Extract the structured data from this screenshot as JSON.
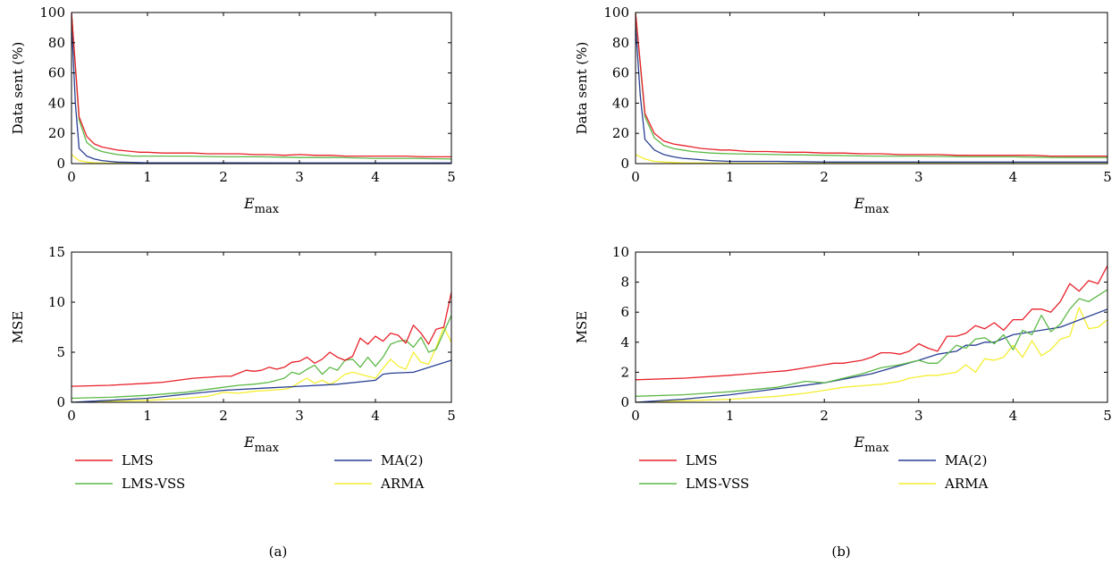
{
  "colors": {
    "LMS": "#e8212a",
    "LMS-VSS": "#5cb947",
    "MA(2)": "#283f94",
    "ARMA": "#f4ee31"
  },
  "captions": [
    "(a)",
    "(b)"
  ],
  "legend": {
    "items": [
      {
        "name": "LMS"
      },
      {
        "name": "MA(2)"
      },
      {
        "name": "LMS-VSS"
      },
      {
        "name": "ARMA"
      }
    ]
  },
  "chart_data": [
    {
      "type": "line",
      "panel": "(a)",
      "ylabel": "Data sent (%)",
      "xlabel": "E_max",
      "xlim": [
        0,
        5
      ],
      "ylim": [
        0,
        100
      ],
      "xticks": [
        0,
        1,
        2,
        3,
        4,
        5
      ],
      "yticks": [
        0,
        20,
        40,
        60,
        80,
        100
      ],
      "series": [
        {
          "name": "LMS",
          "x": [
            0,
            0.1,
            0.2,
            0.3,
            0.4,
            0.5,
            0.6,
            0.7,
            0.8,
            0.9,
            1,
            1.2,
            1.4,
            1.6,
            1.8,
            2,
            2.2,
            2.4,
            2.6,
            2.8,
            3,
            3.2,
            3.4,
            3.6,
            3.8,
            4,
            4.2,
            4.4,
            4.6,
            4.8,
            5
          ],
          "y": [
            100,
            31,
            18,
            13,
            11,
            10,
            9,
            8.5,
            8,
            7.5,
            7.5,
            7,
            7,
            7,
            6.5,
            6.5,
            6.5,
            6,
            6,
            5.5,
            6,
            5.5,
            5.5,
            5,
            5,
            5,
            5,
            5,
            4.5,
            4.5,
            4.5
          ]
        },
        {
          "name": "LMS-VSS",
          "x": [
            0,
            0.1,
            0.2,
            0.3,
            0.4,
            0.5,
            0.6,
            0.7,
            0.8,
            1,
            1.5,
            2,
            2.5,
            3,
            3.5,
            4,
            4.5,
            5
          ],
          "y": [
            100,
            29,
            14,
            10,
            8,
            7,
            6,
            5.5,
            5,
            5,
            5,
            4.5,
            4.5,
            4,
            4,
            3.5,
            3.5,
            3
          ]
        },
        {
          "name": "MA(2)",
          "x": [
            0,
            0.05,
            0.1,
            0.2,
            0.3,
            0.4,
            0.5,
            0.6,
            0.8,
            1,
            1.5,
            2,
            3,
            4,
            5
          ],
          "y": [
            95,
            40,
            10,
            5,
            3,
            2,
            1.5,
            1,
            0.8,
            0.5,
            0.5,
            0.5,
            0.4,
            0.4,
            0.4
          ]
        },
        {
          "name": "ARMA",
          "x": [
            0,
            0.1,
            0.2,
            0.3,
            0.5,
            1,
            2,
            3,
            4,
            5
          ],
          "y": [
            6,
            2,
            1,
            0.5,
            0.3,
            0.2,
            0.2,
            0.1,
            0.1,
            0.1
          ]
        }
      ]
    },
    {
      "type": "line",
      "panel": "(b)",
      "ylabel": "Data sent (%)",
      "xlabel": "E_max",
      "xlim": [
        0,
        5
      ],
      "ylim": [
        0,
        100
      ],
      "xticks": [
        0,
        1,
        2,
        3,
        4,
        5
      ],
      "yticks": [
        0,
        20,
        40,
        60,
        80,
        100
      ],
      "series": [
        {
          "name": "LMS",
          "x": [
            0,
            0.1,
            0.2,
            0.3,
            0.4,
            0.5,
            0.6,
            0.7,
            0.8,
            0.9,
            1,
            1.2,
            1.4,
            1.6,
            1.8,
            2,
            2.2,
            2.4,
            2.6,
            2.8,
            3,
            3.2,
            3.4,
            3.6,
            3.8,
            4,
            4.2,
            4.4,
            4.6,
            4.8,
            5
          ],
          "y": [
            100,
            33,
            20,
            15,
            13,
            12,
            11,
            10,
            9.5,
            9,
            9,
            8,
            8,
            7.5,
            7.5,
            7,
            7,
            6.5,
            6.5,
            6,
            6,
            6,
            5.5,
            5.5,
            5.5,
            5.5,
            5.5,
            5,
            5,
            5,
            5
          ]
        },
        {
          "name": "LMS-VSS",
          "x": [
            0,
            0.1,
            0.2,
            0.3,
            0.4,
            0.5,
            0.6,
            0.8,
            1,
            1.5,
            2,
            2.5,
            3,
            3.5,
            4,
            4.5,
            5
          ],
          "y": [
            100,
            31,
            17,
            12,
            10,
            9,
            8,
            7,
            6.5,
            6,
            5.5,
            5,
            5,
            4.5,
            4.5,
            4,
            4
          ]
        },
        {
          "name": "MA(2)",
          "x": [
            0,
            0.05,
            0.1,
            0.2,
            0.3,
            0.4,
            0.5,
            0.6,
            0.8,
            1,
            1.5,
            2,
            3,
            4,
            5
          ],
          "y": [
            92,
            45,
            16,
            9,
            6,
            4.5,
            3.5,
            3,
            2,
            1.5,
            1.5,
            1,
            1,
            1,
            1
          ]
        },
        {
          "name": "ARMA",
          "x": [
            0,
            0.1,
            0.2,
            0.3,
            0.5,
            1,
            2,
            3,
            4,
            5
          ],
          "y": [
            6,
            3,
            1.5,
            1,
            0.5,
            0.3,
            0.2,
            0.2,
            0.1,
            0.1
          ]
        }
      ]
    },
    {
      "type": "line",
      "panel": "(a)",
      "ylabel": "MSE",
      "xlabel": "E_max",
      "xlim": [
        0,
        5
      ],
      "ylim": [
        0,
        15
      ],
      "xticks": [
        0,
        1,
        2,
        3,
        4,
        5
      ],
      "yticks": [
        0,
        5,
        10,
        15
      ],
      "series": [
        {
          "name": "LMS",
          "x": [
            0,
            0.5,
            1,
            1.2,
            1.4,
            1.6,
            1.8,
            2,
            2.1,
            2.2,
            2.3,
            2.4,
            2.5,
            2.6,
            2.7,
            2.8,
            2.9,
            3,
            3.1,
            3.2,
            3.3,
            3.4,
            3.5,
            3.6,
            3.7,
            3.8,
            3.9,
            4,
            4.1,
            4.2,
            4.3,
            4.4,
            4.5,
            4.6,
            4.7,
            4.8,
            4.9,
            5
          ],
          "y": [
            1.6,
            1.7,
            1.9,
            2.0,
            2.2,
            2.4,
            2.5,
            2.6,
            2.6,
            2.9,
            3.2,
            3.1,
            3.2,
            3.5,
            3.3,
            3.5,
            4.0,
            4.1,
            4.5,
            3.9,
            4.3,
            5.0,
            4.5,
            4.2,
            4.6,
            6.4,
            5.8,
            6.6,
            6.1,
            6.9,
            6.7,
            5.9,
            7.7,
            6.9,
            5.8,
            7.3,
            7.5,
            11.0
          ]
        },
        {
          "name": "LMS-VSS",
          "x": [
            0,
            0.5,
            1,
            1.5,
            2,
            2.2,
            2.4,
            2.6,
            2.8,
            2.9,
            3,
            3.1,
            3.2,
            3.3,
            3.4,
            3.5,
            3.6,
            3.7,
            3.8,
            3.9,
            4,
            4.1,
            4.2,
            4.3,
            4.4,
            4.5,
            4.6,
            4.7,
            4.8,
            4.9,
            5
          ],
          "y": [
            0.4,
            0.5,
            0.7,
            1.0,
            1.5,
            1.7,
            1.8,
            2.0,
            2.4,
            3.0,
            2.8,
            3.3,
            3.7,
            2.8,
            3.5,
            3.2,
            4.2,
            4.3,
            3.5,
            4.5,
            3.6,
            4.5,
            5.8,
            6.1,
            6.2,
            5.5,
            6.5,
            5.0,
            5.3,
            7.0,
            8.7
          ]
        },
        {
          "name": "MA(2)",
          "x": [
            0,
            0.5,
            1,
            1.5,
            2,
            2.5,
            3,
            3.5,
            4,
            4.1,
            4.2,
            4.5,
            5
          ],
          "y": [
            0,
            0.2,
            0.4,
            0.8,
            1.2,
            1.4,
            1.6,
            1.8,
            2.2,
            2.8,
            2.9,
            3.0,
            4.2
          ]
        },
        {
          "name": "ARMA",
          "x": [
            0,
            0.5,
            1,
            1.5,
            1.8,
            2,
            2.2,
            2.4,
            2.6,
            2.8,
            2.9,
            3,
            3.1,
            3.2,
            3.3,
            3.4,
            3.5,
            3.6,
            3.7,
            3.8,
            3.9,
            4,
            4.1,
            4.2,
            4.3,
            4.4,
            4.5,
            4.6,
            4.7,
            4.8,
            4.9,
            5
          ],
          "y": [
            0,
            0.1,
            0.2,
            0.4,
            0.6,
            1.0,
            0.9,
            1.1,
            1.2,
            1.3,
            1.5,
            2.0,
            2.4,
            1.9,
            2.2,
            1.8,
            2.2,
            2.8,
            3.0,
            2.8,
            2.6,
            2.4,
            3.4,
            4.3,
            3.6,
            3.3,
            5.0,
            4.0,
            3.8,
            5.5,
            7.5,
            6.0
          ]
        }
      ]
    },
    {
      "type": "line",
      "panel": "(b)",
      "ylabel": "MSE",
      "xlabel": "E_max",
      "xlim": [
        0,
        5
      ],
      "ylim": [
        0,
        10
      ],
      "xticks": [
        0,
        1,
        2,
        3,
        4,
        5
      ],
      "yticks": [
        0,
        2,
        4,
        6,
        8,
        10
      ],
      "series": [
        {
          "name": "LMS",
          "x": [
            0,
            0.5,
            1,
            1.2,
            1.4,
            1.6,
            1.8,
            2,
            2.1,
            2.2,
            2.3,
            2.4,
            2.5,
            2.6,
            2.7,
            2.8,
            2.9,
            3,
            3.1,
            3.2,
            3.3,
            3.4,
            3.5,
            3.6,
            3.7,
            3.8,
            3.9,
            4,
            4.1,
            4.2,
            4.3,
            4.4,
            4.5,
            4.6,
            4.7,
            4.8,
            4.9,
            5
          ],
          "y": [
            1.5,
            1.6,
            1.8,
            1.9,
            2.0,
            2.1,
            2.3,
            2.5,
            2.6,
            2.6,
            2.7,
            2.8,
            3.0,
            3.3,
            3.3,
            3.2,
            3.4,
            3.9,
            3.6,
            3.4,
            4.4,
            4.4,
            4.6,
            5.1,
            4.9,
            5.3,
            4.8,
            5.5,
            5.5,
            6.2,
            6.2,
            6.0,
            6.7,
            7.9,
            7.4,
            8.1,
            7.9,
            9.1
          ]
        },
        {
          "name": "LMS-VSS",
          "x": [
            0,
            0.5,
            1,
            1.5,
            1.8,
            2,
            2.2,
            2.4,
            2.6,
            2.8,
            3,
            3.1,
            3.2,
            3.3,
            3.4,
            3.5,
            3.6,
            3.7,
            3.8,
            3.9,
            4,
            4.1,
            4.2,
            4.3,
            4.4,
            4.5,
            4.6,
            4.7,
            4.8,
            4.9,
            5
          ],
          "y": [
            0.4,
            0.5,
            0.7,
            1.0,
            1.4,
            1.3,
            1.6,
            1.9,
            2.3,
            2.5,
            2.8,
            2.6,
            2.6,
            3.2,
            3.8,
            3.6,
            4.2,
            4.3,
            3.9,
            4.5,
            3.5,
            4.8,
            4.5,
            5.8,
            4.7,
            5.2,
            6.2,
            6.9,
            6.7,
            7.1,
            7.5
          ]
        },
        {
          "name": "MA(2)",
          "x": [
            0,
            0.5,
            1,
            1.5,
            2,
            2.5,
            3,
            3.2,
            3.4,
            3.5,
            3.6,
            3.7,
            3.8,
            4,
            4.5,
            5
          ],
          "y": [
            0,
            0.2,
            0.5,
            0.9,
            1.3,
            1.9,
            2.8,
            3.2,
            3.4,
            3.8,
            3.8,
            4.0,
            4.0,
            4.5,
            5.0,
            6.2
          ]
        },
        {
          "name": "ARMA",
          "x": [
            0,
            0.5,
            1,
            1.5,
            1.8,
            2,
            2.2,
            2.4,
            2.6,
            2.7,
            2.8,
            2.9,
            3,
            3.1,
            3.2,
            3.3,
            3.4,
            3.5,
            3.6,
            3.7,
            3.8,
            3.9,
            4,
            4.1,
            4.2,
            4.3,
            4.4,
            4.5,
            4.6,
            4.7,
            4.8,
            4.9,
            5
          ],
          "y": [
            0,
            0.1,
            0.2,
            0.4,
            0.6,
            0.8,
            1.0,
            1.1,
            1.2,
            1.3,
            1.4,
            1.6,
            1.7,
            1.8,
            1.8,
            1.9,
            2.0,
            2.5,
            2.0,
            2.9,
            2.8,
            3.0,
            3.8,
            3.0,
            4.1,
            3.1,
            3.5,
            4.2,
            4.4,
            6.3,
            4.9,
            5.0,
            5.5
          ]
        }
      ]
    }
  ]
}
